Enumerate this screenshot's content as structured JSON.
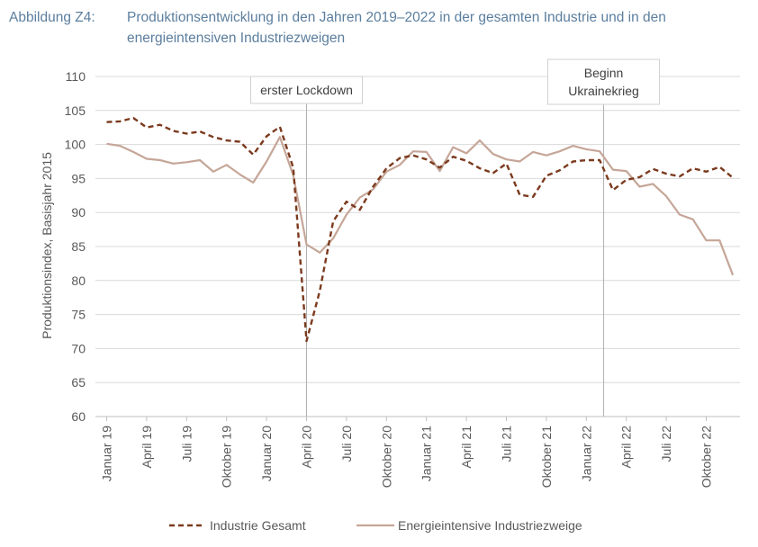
{
  "header": {
    "prefix": "Abbildung Z4:",
    "title": "Produktionsentwicklung in den Jahren 2019–2022 in der gesamten Industrie und in den energieintensiven Industriezweigen"
  },
  "chart_data": {
    "type": "line",
    "ylabel": "Produktionsindex, Basisjahr 2015",
    "ylim": [
      60,
      110
    ],
    "yticks": [
      60,
      65,
      70,
      75,
      80,
      85,
      90,
      95,
      100,
      105,
      110
    ],
    "x": [
      "Jan 19",
      "Feb 19",
      "Mrz 19",
      "Apr 19",
      "Mai 19",
      "Jun 19",
      "Jul 19",
      "Aug 19",
      "Sep 19",
      "Okt 19",
      "Nov 19",
      "Dez 19",
      "Jan 20",
      "Feb 20",
      "Mrz 20",
      "Apr 20",
      "Mai 20",
      "Jun 20",
      "Jul 20",
      "Aug 20",
      "Sep 20",
      "Okt 20",
      "Nov 20",
      "Dez 20",
      "Jan 21",
      "Feb 21",
      "Mrz 21",
      "Apr 21",
      "Mai 21",
      "Jun 21",
      "Jul 21",
      "Aug 21",
      "Sep 21",
      "Okt 21",
      "Nov 21",
      "Dez 21",
      "Jan 22",
      "Feb 22",
      "Mrz 22",
      "Apr 22",
      "Mai 22",
      "Jun 22",
      "Jul 22",
      "Aug 22",
      "Sep 22",
      "Okt 22",
      "Nov 22",
      "Dez 22"
    ],
    "xtick_labels": [
      {
        "index": 0,
        "label": "Januar 19"
      },
      {
        "index": 3,
        "label": "April 19"
      },
      {
        "index": 6,
        "label": "Juli 19"
      },
      {
        "index": 9,
        "label": "Oktober 19"
      },
      {
        "index": 12,
        "label": "Januar 20"
      },
      {
        "index": 15,
        "label": "April 20"
      },
      {
        "index": 18,
        "label": "Juli 20"
      },
      {
        "index": 21,
        "label": "Oktober 20"
      },
      {
        "index": 24,
        "label": "Januar 21"
      },
      {
        "index": 27,
        "label": "April 21"
      },
      {
        "index": 30,
        "label": "Juli 21"
      },
      {
        "index": 33,
        "label": "Oktober 21"
      },
      {
        "index": 36,
        "label": "Januar 22"
      },
      {
        "index": 39,
        "label": "April 22"
      },
      {
        "index": 42,
        "label": "Juli 22"
      },
      {
        "index": 45,
        "label": "Oktober 22"
      }
    ],
    "series": [
      {
        "name": "Industrie Gesamt",
        "color": "#7b3a1e",
        "style": "dashed",
        "values": [
          103.3,
          103.4,
          103.9,
          102.5,
          102.9,
          102.0,
          101.6,
          101.9,
          101.1,
          100.6,
          100.4,
          98.5,
          101.2,
          102.6,
          96.6,
          71.1,
          78.5,
          88.7,
          91.6,
          90.4,
          93.8,
          96.5,
          98.0,
          98.4,
          97.8,
          96.6,
          98.2,
          97.6,
          96.5,
          95.8,
          97.2,
          92.6,
          92.3,
          95.4,
          96.2,
          97.5,
          97.7,
          97.7,
          93.3,
          94.8,
          95.2,
          96.4,
          95.7,
          95.3,
          96.5,
          96.0,
          96.7,
          95.1
        ]
      },
      {
        "name": "Energieintensive Industriezweige",
        "color": "#c5a698",
        "style": "solid",
        "values": [
          100.1,
          99.8,
          98.9,
          97.9,
          97.7,
          97.2,
          97.4,
          97.7,
          96.0,
          97.0,
          95.6,
          94.4,
          97.5,
          101.1,
          95.5,
          85.3,
          84.1,
          86.2,
          89.7,
          92.2,
          93.4,
          96.0,
          97.0,
          99.0,
          98.9,
          96.1,
          99.6,
          98.7,
          100.6,
          98.6,
          97.8,
          97.5,
          98.9,
          98.4,
          99.0,
          99.8,
          99.3,
          99.0,
          96.3,
          96.1,
          93.8,
          94.2,
          92.4,
          89.7,
          89.0,
          85.9,
          85.9,
          80.8
        ]
      }
    ],
    "annotations": [
      {
        "label": "erster Lockdown",
        "at_index": 15
      },
      {
        "lines": [
          "Beginn",
          "Ukrainekrieg"
        ],
        "at_index": 37.3
      }
    ],
    "legend": {
      "position": "bottom"
    },
    "grid": {
      "horizontal": true,
      "vertical": false
    }
  }
}
